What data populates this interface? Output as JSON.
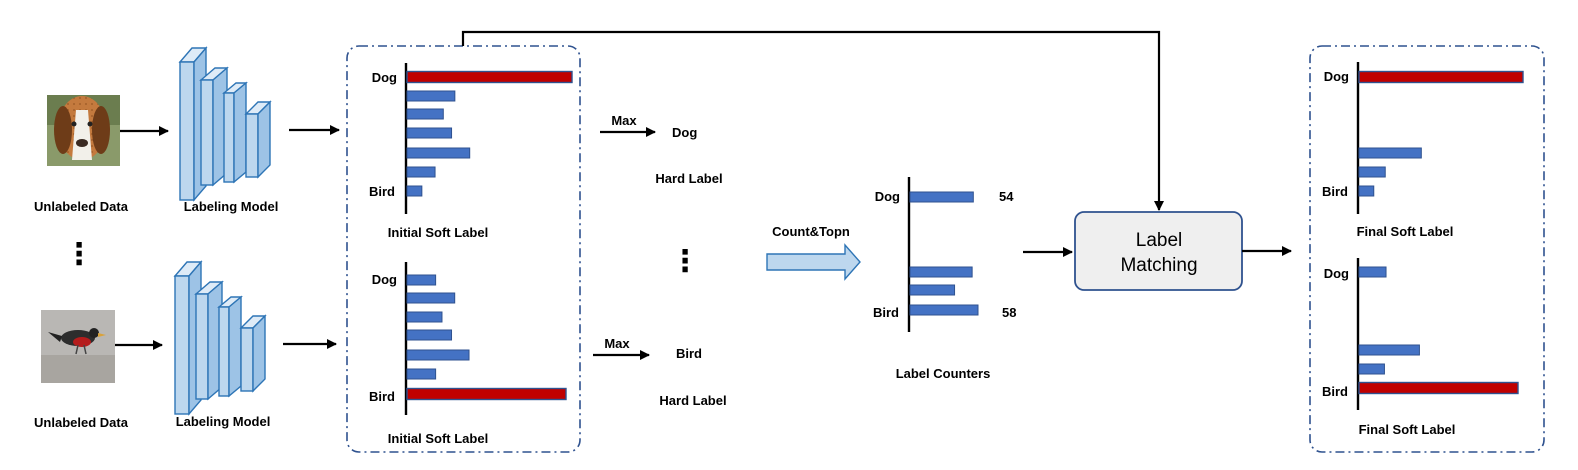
{
  "colors": {
    "bar_normal": "#4472c4",
    "bar_max": "#c00000",
    "frame": "#2f528f",
    "model": "#bdd7ee",
    "matching_box": "#efefef"
  },
  "icons": {
    "dog_image": "dog-photo-icon",
    "bird_image": "bird-photo-icon",
    "model": "cnn-layers-icon"
  },
  "inputs": {
    "top_caption": "Unlabeled Data",
    "bottom_caption": "Unlabeled Data",
    "ellipsis": "⋮"
  },
  "models": {
    "top_caption": "Labeling  Model",
    "bottom_caption": "Labeling Model"
  },
  "initial_soft_labels": {
    "top": {
      "caption": "Initial Soft Label",
      "first_label": "Dog",
      "last_label": "Bird",
      "bars": [
        1.0,
        0.29,
        0.22,
        0.27,
        0.38,
        0.17,
        0.09
      ],
      "max_index": 0
    },
    "bottom": {
      "caption": "Initial Soft Label",
      "first_label": "Dog",
      "last_label": "Bird",
      "bars": [
        0.18,
        0.3,
        0.22,
        0.28,
        0.39,
        0.18,
        1.0
      ],
      "max_index": 6
    }
  },
  "hard_labels": {
    "top": {
      "op": "Max",
      "value": "Dog",
      "caption": "Hard Label"
    },
    "bottom": {
      "op": "Max",
      "value": "Bird",
      "caption": "Hard Label"
    },
    "ellipsis": "⋮"
  },
  "count": {
    "label": "Count&Topn"
  },
  "counters": {
    "caption": "Label Counters",
    "dog_label": "Dog",
    "dog_value": "54",
    "bird_label": "Bird",
    "bird_value": "58",
    "bars": [
      54,
      53,
      38,
      58
    ]
  },
  "matching": {
    "line1": "Label",
    "line2": "Matching"
  },
  "final_soft_labels": {
    "top": {
      "caption": "Final Soft Label",
      "first_label": "Dog",
      "last_label": "Bird",
      "bars": [
        1.0,
        0.38,
        0.16,
        0.09
      ],
      "max_index": 0
    },
    "bottom": {
      "caption": "Final Soft Label",
      "first_label": "Dog",
      "last_label": "Bird",
      "bars": [
        0.17,
        0.38,
        0.16,
        1.0
      ],
      "max_index": 3
    }
  }
}
